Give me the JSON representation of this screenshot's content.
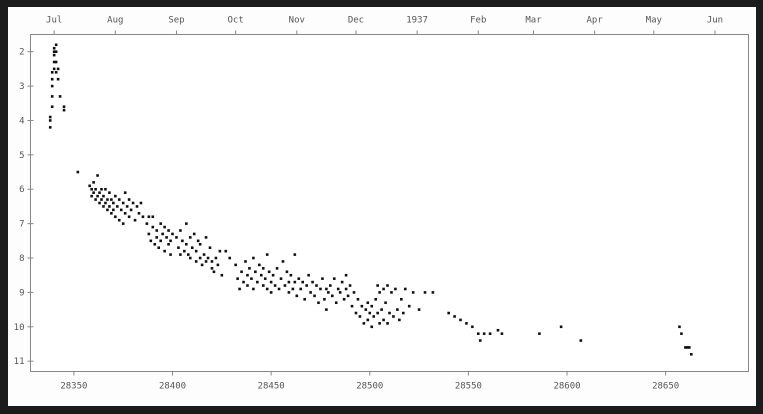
{
  "chart_data": {
    "type": "scatter",
    "title": "",
    "xlabel": "",
    "ylabel": "",
    "xlim": [
      28328,
      28692
    ],
    "ylim": [
      1.5,
      11.3
    ],
    "y_inverted": true,
    "grid": false,
    "x_ticks": [
      28350,
      28400,
      28450,
      28500,
      28550,
      28600,
      28650
    ],
    "x_tick_labels": [
      "28350",
      "28400",
      "28450",
      "28500",
      "28550",
      "28600",
      "28650"
    ],
    "y_ticks": [
      2,
      3,
      4,
      5,
      6,
      7,
      8,
      9,
      10,
      11
    ],
    "y_tick_labels": [
      "2",
      "3",
      "4",
      "5",
      "6",
      "7",
      "8",
      "9",
      "10",
      "11"
    ],
    "top_axis_ticks": [
      28340,
      28371,
      28402,
      28432,
      28463,
      28493,
      28524,
      28555,
      28583,
      28614,
      28644,
      28675
    ],
    "top_axis_labels": [
      "Jul",
      "Aug",
      "Sep",
      "Oct",
      "Nov",
      "Dec",
      "1937",
      "Feb",
      "Mar",
      "Apr",
      "May",
      "Jun"
    ],
    "marker_color": "#111111",
    "axis_color": "#888888",
    "series": [
      {
        "points": [
          [
            28338,
            4.2
          ],
          [
            28338,
            4.0
          ],
          [
            28338,
            3.9
          ],
          [
            28339,
            3.6
          ],
          [
            28339,
            3.3
          ],
          [
            28339,
            3.0
          ],
          [
            28339,
            2.8
          ],
          [
            28339,
            2.6
          ],
          [
            28340,
            2.5
          ],
          [
            28340,
            2.3
          ],
          [
            28340,
            2.1
          ],
          [
            28340,
            2.0
          ],
          [
            28340,
            1.9
          ],
          [
            28341,
            1.8
          ],
          [
            28341,
            2.0
          ],
          [
            28341,
            2.3
          ],
          [
            28341,
            2.6
          ],
          [
            28342,
            2.8
          ],
          [
            28342,
            2.5
          ],
          [
            28343,
            3.3
          ],
          [
            28345,
            3.6
          ],
          [
            28345,
            3.7
          ],
          [
            28352,
            5.5
          ],
          [
            28358,
            5.9
          ],
          [
            28359,
            6.0
          ],
          [
            28359,
            6.2
          ],
          [
            28360,
            5.8
          ],
          [
            28360,
            6.1
          ],
          [
            28361,
            6.3
          ],
          [
            28361,
            6.0
          ],
          [
            28362,
            6.2
          ],
          [
            28362,
            5.6
          ],
          [
            28363,
            6.4
          ],
          [
            28363,
            6.1
          ],
          [
            28364,
            6.0
          ],
          [
            28364,
            6.3
          ],
          [
            28365,
            6.5
          ],
          [
            28365,
            6.2
          ],
          [
            28366,
            6.0
          ],
          [
            28366,
            6.4
          ],
          [
            28367,
            6.3
          ],
          [
            28367,
            6.6
          ],
          [
            28368,
            6.1
          ],
          [
            28368,
            6.5
          ],
          [
            28369,
            6.7
          ],
          [
            28369,
            6.3
          ],
          [
            28370,
            6.4
          ],
          [
            28370,
            6.6
          ],
          [
            28371,
            6.2
          ],
          [
            28371,
            6.8
          ],
          [
            28372,
            6.5
          ],
          [
            28373,
            6.9
          ],
          [
            28373,
            6.3
          ],
          [
            28374,
            6.6
          ],
          [
            28375,
            6.4
          ],
          [
            28375,
            7.0
          ],
          [
            28376,
            6.7
          ],
          [
            28376,
            6.1
          ],
          [
            28377,
            6.5
          ],
          [
            28378,
            6.8
          ],
          [
            28378,
            6.3
          ],
          [
            28379,
            6.6
          ],
          [
            28380,
            6.4
          ],
          [
            28381,
            6.9
          ],
          [
            28382,
            6.5
          ],
          [
            28383,
            6.7
          ],
          [
            28384,
            6.4
          ],
          [
            28385,
            6.8
          ],
          [
            28387,
            7.0
          ],
          [
            28388,
            7.3
          ],
          [
            28388,
            6.8
          ],
          [
            28389,
            7.5
          ],
          [
            28390,
            7.1
          ],
          [
            28390,
            6.8
          ],
          [
            28391,
            7.6
          ],
          [
            28392,
            7.2
          ],
          [
            28392,
            7.4
          ],
          [
            28393,
            7.7
          ],
          [
            28394,
            7.0
          ],
          [
            28394,
            7.5
          ],
          [
            28395,
            7.3
          ],
          [
            28396,
            7.8
          ],
          [
            28396,
            7.1
          ],
          [
            28397,
            7.4
          ],
          [
            28398,
            7.6
          ],
          [
            28398,
            7.2
          ],
          [
            28399,
            7.5
          ],
          [
            28399,
            7.9
          ],
          [
            28400,
            7.3
          ],
          [
            28402,
            7.4
          ],
          [
            28403,
            7.7
          ],
          [
            28404,
            7.2
          ],
          [
            28404,
            7.9
          ],
          [
            28405,
            7.5
          ],
          [
            28406,
            7.8
          ],
          [
            28407,
            7.0
          ],
          [
            28407,
            7.6
          ],
          [
            28408,
            7.9
          ],
          [
            28409,
            7.4
          ],
          [
            28409,
            8.0
          ],
          [
            28410,
            7.7
          ],
          [
            28411,
            7.3
          ],
          [
            28412,
            8.1
          ],
          [
            28412,
            7.8
          ],
          [
            28413,
            7.5
          ],
          [
            28414,
            8.0
          ],
          [
            28414,
            7.6
          ],
          [
            28415,
            8.2
          ],
          [
            28416,
            7.9
          ],
          [
            28417,
            8.1
          ],
          [
            28417,
            7.4
          ],
          [
            28418,
            8.0
          ],
          [
            28419,
            7.7
          ],
          [
            28420,
            8.3
          ],
          [
            28420,
            8.1
          ],
          [
            28421,
            8.4
          ],
          [
            28422,
            8.0
          ],
          [
            28423,
            8.2
          ],
          [
            28424,
            7.8
          ],
          [
            28425,
            8.5
          ],
          [
            28427,
            7.8
          ],
          [
            28429,
            8.0
          ],
          [
            28432,
            8.2
          ],
          [
            28433,
            8.6
          ],
          [
            28434,
            8.9
          ],
          [
            28435,
            8.4
          ],
          [
            28436,
            8.7
          ],
          [
            28437,
            8.1
          ],
          [
            28438,
            8.5
          ],
          [
            28438,
            8.8
          ],
          [
            28439,
            8.3
          ],
          [
            28440,
            8.6
          ],
          [
            28441,
            8.0
          ],
          [
            28441,
            8.9
          ],
          [
            28442,
            8.4
          ],
          [
            28443,
            8.7
          ],
          [
            28444,
            8.2
          ],
          [
            28445,
            8.5
          ],
          [
            28446,
            8.8
          ],
          [
            28446,
            8.3
          ],
          [
            28447,
            8.6
          ],
          [
            28448,
            7.9
          ],
          [
            28448,
            8.9
          ],
          [
            28449,
            8.4
          ],
          [
            28450,
            8.7
          ],
          [
            28450,
            9.0
          ],
          [
            28451,
            8.5
          ],
          [
            28452,
            8.8
          ],
          [
            28453,
            8.3
          ],
          [
            28454,
            8.9
          ],
          [
            28455,
            8.6
          ],
          [
            28456,
            8.1
          ],
          [
            28457,
            8.8
          ],
          [
            28458,
            8.4
          ],
          [
            28459,
            9.0
          ],
          [
            28459,
            8.7
          ],
          [
            28460,
            8.5
          ],
          [
            28461,
            8.9
          ],
          [
            28462,
            7.9
          ],
          [
            28462,
            8.7
          ],
          [
            28463,
            9.1
          ],
          [
            28464,
            8.6
          ],
          [
            28465,
            8.9
          ],
          [
            28466,
            8.7
          ],
          [
            28467,
            9.2
          ],
          [
            28468,
            8.8
          ],
          [
            28469,
            8.5
          ],
          [
            28470,
            9.0
          ],
          [
            28471,
            8.7
          ],
          [
            28472,
            9.1
          ],
          [
            28473,
            8.8
          ],
          [
            28474,
            9.3
          ],
          [
            28475,
            8.9
          ],
          [
            28476,
            8.6
          ],
          [
            28477,
            9.2
          ],
          [
            28478,
            8.9
          ],
          [
            28478,
            9.5
          ],
          [
            28479,
            9.0
          ],
          [
            28480,
            8.8
          ],
          [
            28481,
            9.1
          ],
          [
            28482,
            8.6
          ],
          [
            28483,
            9.3
          ],
          [
            28484,
            8.9
          ],
          [
            28485,
            9.0
          ],
          [
            28486,
            8.7
          ],
          [
            28487,
            9.2
          ],
          [
            28488,
            8.9
          ],
          [
            28488,
            8.5
          ],
          [
            28489,
            9.1
          ],
          [
            28490,
            8.8
          ],
          [
            28491,
            9.4
          ],
          [
            28492,
            9.0
          ],
          [
            28493,
            9.6
          ],
          [
            28494,
            9.2
          ],
          [
            28495,
            9.7
          ],
          [
            28496,
            9.4
          ],
          [
            28497,
            9.9
          ],
          [
            28498,
            9.5
          ],
          [
            28499,
            9.8
          ],
          [
            28499,
            9.3
          ],
          [
            28500,
            9.6
          ],
          [
            28501,
            10.0
          ],
          [
            28501,
            9.4
          ],
          [
            28502,
            9.7
          ],
          [
            28503,
            9.2
          ],
          [
            28504,
            8.8
          ],
          [
            28504,
            9.6
          ],
          [
            28505,
            9.9
          ],
          [
            28505,
            9.0
          ],
          [
            28506,
            9.5
          ],
          [
            28507,
            8.9
          ],
          [
            28507,
            9.8
          ],
          [
            28508,
            9.3
          ],
          [
            28509,
            8.8
          ],
          [
            28509,
            9.9
          ],
          [
            28510,
            9.6
          ],
          [
            28511,
            9.0
          ],
          [
            28512,
            9.7
          ],
          [
            28513,
            8.9
          ],
          [
            28514,
            9.5
          ],
          [
            28515,
            9.8
          ],
          [
            28516,
            9.2
          ],
          [
            28517,
            9.6
          ],
          [
            28518,
            8.9
          ],
          [
            28520,
            9.4
          ],
          [
            28522,
            9.0
          ],
          [
            28525,
            9.5
          ],
          [
            28528,
            9.0
          ],
          [
            28532,
            9.0
          ],
          [
            28540,
            9.6
          ],
          [
            28543,
            9.7
          ],
          [
            28546,
            9.8
          ],
          [
            28549,
            9.9
          ],
          [
            28552,
            10.0
          ],
          [
            28555,
            10.2
          ],
          [
            28556,
            10.4
          ],
          [
            28558,
            10.2
          ],
          [
            28561,
            10.2
          ],
          [
            28565,
            10.1
          ],
          [
            28567,
            10.2
          ],
          [
            28586,
            10.2
          ],
          [
            28597,
            10.0
          ],
          [
            28607,
            10.4
          ],
          [
            28657,
            10.0
          ],
          [
            28658,
            10.2
          ],
          [
            28660,
            10.6
          ],
          [
            28661,
            10.6
          ],
          [
            28662,
            10.6
          ],
          [
            28663,
            10.8
          ]
        ]
      }
    ]
  }
}
